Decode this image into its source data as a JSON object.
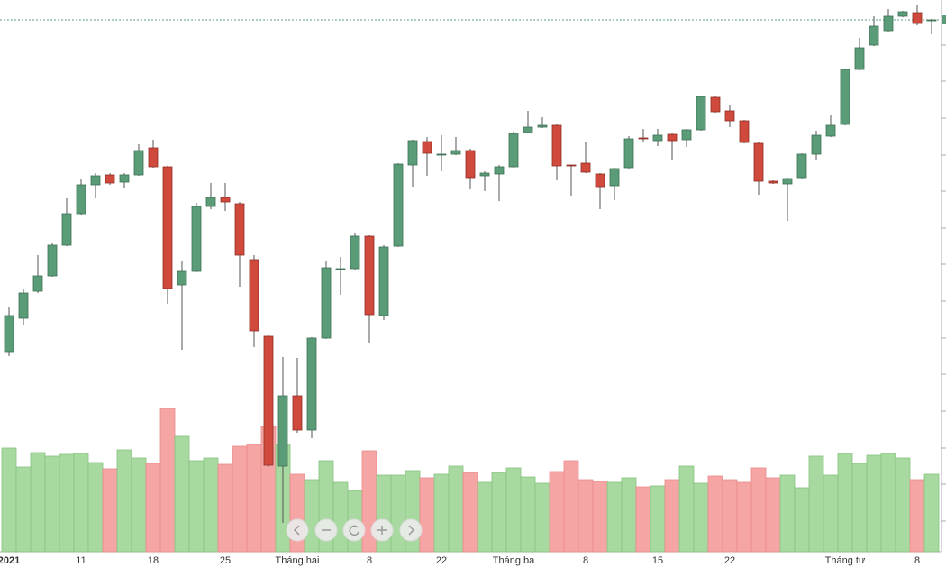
{
  "chart_data": {
    "type": "candlestick",
    "categories": [
      "2021",
      null,
      null,
      null,
      null,
      "11",
      null,
      null,
      null,
      null,
      "18",
      null,
      null,
      null,
      null,
      "25",
      null,
      null,
      null,
      null,
      "Tháng hai",
      null,
      null,
      null,
      null,
      "8",
      null,
      null,
      null,
      null,
      "22",
      null,
      null,
      null,
      null,
      "Tháng ba",
      null,
      null,
      null,
      null,
      "8",
      null,
      null,
      null,
      null,
      "15",
      null,
      null,
      null,
      null,
      "22",
      null,
      null,
      null,
      null,
      null,
      null,
      null,
      "Tháng tư",
      null,
      null,
      null,
      null,
      "8",
      null
    ],
    "open": [
      222,
      259,
      289,
      306,
      340,
      375,
      407,
      418,
      410,
      418,
      448,
      427,
      296,
      311,
      383,
      393,
      386,
      324,
      239,
      95,
      173,
      135,
      237,
      313,
      314,
      350,
      262,
      339,
      429,
      455,
      441,
      441,
      445,
      417,
      419,
      427,
      465,
      471,
      473,
      429,
      431,
      419,
      406,
      426,
      459,
      456,
      463,
      457,
      468,
      504,
      489,
      478,
      453,
      411,
      408,
      415,
      441,
      461,
      474,
      535,
      562,
      578,
      594,
      598,
      589
    ],
    "high": [
      272,
      292,
      329,
      342,
      392,
      414,
      420,
      420,
      420,
      452,
      457,
      428,
      322,
      387,
      409,
      409,
      388,
      329,
      240,
      216,
      215,
      238,
      322,
      327,
      354,
      351,
      340,
      431,
      457,
      460,
      462,
      460,
      447,
      422,
      429,
      466,
      489,
      482,
      474,
      429,
      454,
      420,
      426,
      461,
      469,
      469,
      465,
      469,
      506,
      505,
      495,
      479,
      454,
      412,
      415,
      442,
      467,
      485,
      536,
      570,
      594,
      602,
      600,
      607,
      591
    ],
    "low": [
      217,
      252,
      287,
      305,
      339,
      374,
      392,
      407,
      404,
      417,
      426,
      275,
      224,
      310,
      380,
      378,
      294,
      227,
      94,
      32,
      132,
      126,
      236,
      285,
      313,
      232,
      257,
      338,
      405,
      417,
      422,
      440,
      402,
      400,
      389,
      426,
      464,
      470,
      412,
      395,
      420,
      380,
      390,
      425,
      454,
      450,
      435,
      449,
      467,
      487,
      471,
      453,
      396,
      408,
      367,
      414,
      435,
      460,
      473,
      534,
      561,
      576,
      593,
      584,
      574
    ],
    "close": [
      262,
      287,
      306,
      340,
      375,
      407,
      417,
      409,
      418,
      445,
      427,
      292,
      311,
      383,
      393,
      388,
      329,
      245,
      96,
      173,
      135,
      237,
      315,
      314,
      350,
      263,
      338,
      430,
      456,
      442,
      441,
      445,
      415,
      420,
      427,
      464,
      471,
      473,
      428,
      428,
      421,
      405,
      425,
      458,
      458,
      462,
      456,
      468,
      505,
      488,
      478,
      454,
      411,
      409,
      414,
      441,
      462,
      473,
      535,
      559,
      583,
      594,
      599,
      586,
      590
    ],
    "volume": [
      115,
      94,
      110,
      106,
      108,
      109,
      99,
      92,
      113,
      104,
      98,
      159,
      128,
      101,
      104,
      97,
      117,
      119,
      139,
      119,
      86,
      80,
      101,
      77,
      68,
      112,
      85,
      85,
      90,
      82,
      86,
      95,
      88,
      77,
      88,
      93,
      83,
      76,
      89,
      101,
      80,
      78,
      77,
      82,
      72,
      73,
      80,
      95,
      76,
      84,
      80,
      77,
      93,
      82,
      85,
      71,
      106,
      85,
      109,
      98,
      107,
      109,
      104,
      80,
      86
    ],
    "ylim": [
      0,
      612
    ],
    "y2lim": [
      0,
      612
    ],
    "yticks": [
      34,
      75,
      115,
      156,
      197,
      237,
      278,
      319,
      359,
      400,
      440,
      481,
      522,
      562
    ],
    "up_color": "#5b9c78",
    "down_color": "#d0493d",
    "volume_up_color": "#a8d9a0",
    "volume_down_color": "#f6a5a5"
  }
}
